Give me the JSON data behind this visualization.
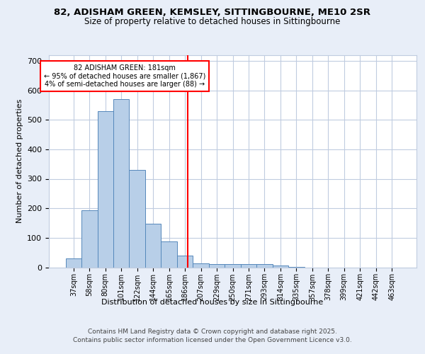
{
  "title_line1": "82, ADISHAM GREEN, KEMSLEY, SITTINGBOURNE, ME10 2SR",
  "title_line2": "Size of property relative to detached houses in Sittingbourne",
  "xlabel": "Distribution of detached houses by size in Sittingbourne",
  "ylabel": "Number of detached properties",
  "bar_labels": [
    "37sqm",
    "58sqm",
    "80sqm",
    "101sqm",
    "122sqm",
    "144sqm",
    "165sqm",
    "186sqm",
    "207sqm",
    "229sqm",
    "250sqm",
    "271sqm",
    "293sqm",
    "314sqm",
    "335sqm",
    "357sqm",
    "378sqm",
    "399sqm",
    "421sqm",
    "442sqm",
    "463sqm"
  ],
  "bar_heights": [
    30,
    193,
    530,
    570,
    330,
    148,
    88,
    40,
    13,
    10,
    10,
    10,
    10,
    5,
    1,
    0,
    0,
    0,
    0,
    0,
    0
  ],
  "bar_color": "#b8cfe8",
  "bar_edge_color": "#5588bb",
  "vline_color": "red",
  "vline_x": 7.18,
  "annotation_text": "82 ADISHAM GREEN: 181sqm\n← 95% of detached houses are smaller (1,867)\n4% of semi-detached houses are larger (88) →",
  "annotation_box_color": "white",
  "annotation_box_edge_color": "red",
  "ylim": [
    0,
    720
  ],
  "yticks": [
    0,
    100,
    200,
    300,
    400,
    500,
    600,
    700
  ],
  "footnote_line1": "Contains HM Land Registry data © Crown copyright and database right 2025.",
  "footnote_line2": "Contains public sector information licensed under the Open Government Licence v3.0.",
  "bg_color": "#e8eef8",
  "plot_bg_color": "#ffffff",
  "grid_color": "#c0cce0"
}
